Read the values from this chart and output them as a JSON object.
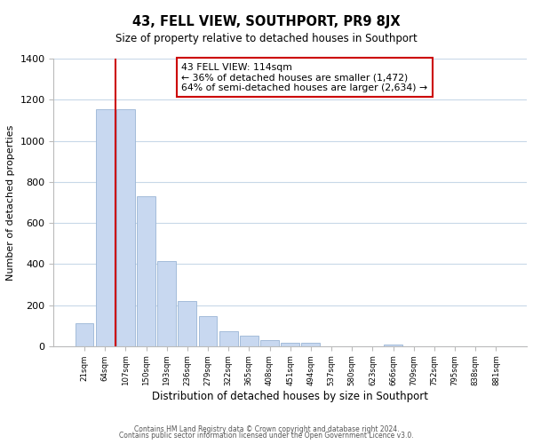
{
  "title": "43, FELL VIEW, SOUTHPORT, PR9 8JX",
  "subtitle": "Size of property relative to detached houses in Southport",
  "xlabel": "Distribution of detached houses by size in Southport",
  "ylabel": "Number of detached properties",
  "categories": [
    "21sqm",
    "64sqm",
    "107sqm",
    "150sqm",
    "193sqm",
    "236sqm",
    "279sqm",
    "322sqm",
    "365sqm",
    "408sqm",
    "451sqm",
    "494sqm",
    "537sqm",
    "580sqm",
    "623sqm",
    "666sqm",
    "709sqm",
    "752sqm",
    "795sqm",
    "838sqm",
    "881sqm"
  ],
  "values": [
    110,
    1155,
    1155,
    730,
    415,
    220,
    148,
    75,
    50,
    30,
    18,
    15,
    0,
    0,
    0,
    10,
    0,
    0,
    0,
    0,
    0
  ],
  "bar_color": "#c8d8f0",
  "bar_edge_color": "#9ab5d5",
  "vline_x_index": 2,
  "vline_color": "#cc0000",
  "annotation_text": "43 FELL VIEW: 114sqm\n← 36% of detached houses are smaller (1,472)\n64% of semi-detached houses are larger (2,634) →",
  "annotation_box_edgecolor": "#cc0000",
  "ylim": [
    0,
    1400
  ],
  "yticks": [
    0,
    200,
    400,
    600,
    800,
    1000,
    1200,
    1400
  ],
  "footer_line1": "Contains HM Land Registry data © Crown copyright and database right 2024.",
  "footer_line2": "Contains public sector information licensed under the Open Government Licence v3.0.",
  "background_color": "#ffffff",
  "grid_color": "#c8d8e8"
}
